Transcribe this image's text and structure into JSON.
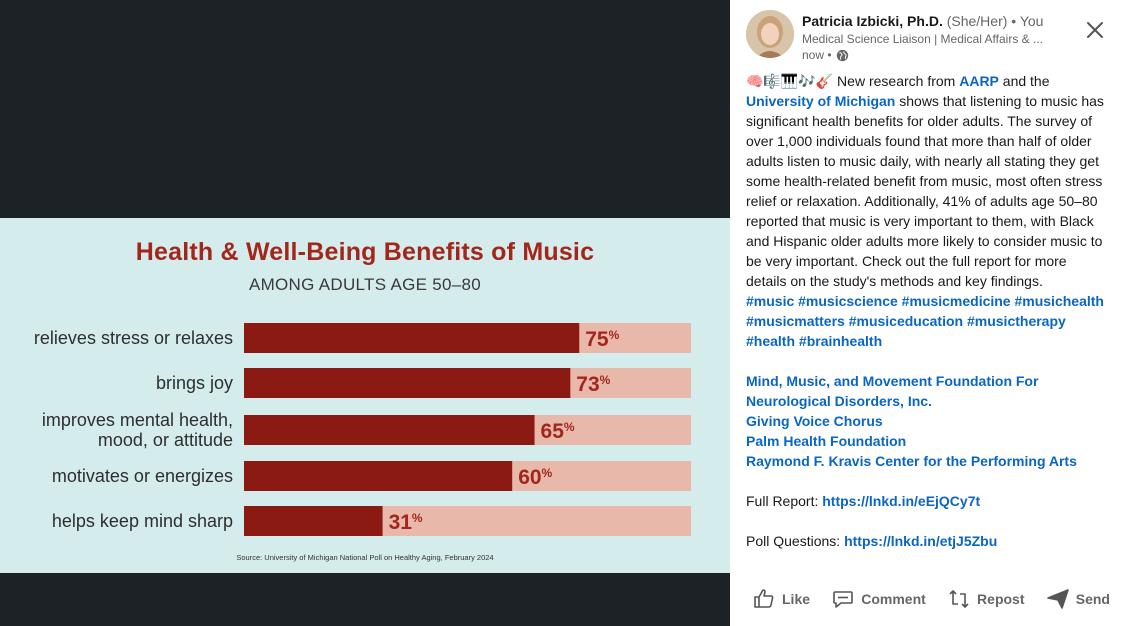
{
  "infographic": {
    "title": "Health & Well-Being Benefits of Music",
    "subtitle": "AMONG ADULTS AGE 50–80",
    "source": "Source: University of Michigan National Poll on Healthy Aging, February 2024"
  },
  "chart_data": {
    "type": "bar",
    "orientation": "horizontal",
    "title": "Health & Well-Being Benefits of Music",
    "subtitle": "AMONG ADULTS AGE 50–80",
    "categories": [
      [
        "relieves stress or relaxes"
      ],
      [
        "brings joy"
      ],
      [
        "improves mental health,",
        "mood, or attitude"
      ],
      [
        "motivates or energizes"
      ],
      [
        "helps keep mind sharp"
      ]
    ],
    "values": [
      75,
      73,
      65,
      60,
      31
    ],
    "unit": "%",
    "xlim": [
      0,
      100
    ],
    "grid": false,
    "legend": "none",
    "bar_color": "#8b1a12",
    "track_color": "#e8b8aa",
    "value_color": "#a3261c"
  },
  "post": {
    "author_name": "Patricia Izbicki, Ph.D.",
    "pronouns": "(She/Her)",
    "connection": "• You",
    "headline": "Medical Science Liaison | Medical Affairs & ...",
    "time": "now •",
    "emojis": "🧠🎼🎹🎶🎸",
    "p1_a": " New research from ",
    "p1_link1": "AARP",
    "p1_b": " and the ",
    "p1_link2": "University of Michigan",
    "p1_c": " shows that listening to music has significant health benefits for older adults. The survey of over 1,000 individuals found that more than half of older adults listen to music daily, with nearly all stating they get some health-related benefit from music, most often stress relief or relaxation. Additionally, 41% of adults age 50–80 reported that music is very important to them, with Black and Hispanic older adults more likely to consider music to be very important. Check out the full report for more details on the study's methods and key findings.",
    "hashtags": [
      "#music",
      "#musicscience",
      "#musicmedicine",
      "#musichealth",
      "#musicmatters",
      "#musiceducation",
      "#musictherapy",
      "#health",
      "#brainhealth"
    ],
    "mentions": [
      "Mind, Music, and Movement Foundation For Neurological Disorders, Inc.",
      "Giving Voice Chorus",
      "Palm Health Foundation",
      "Raymond F. Kravis Center for the Performing Arts"
    ],
    "full_report_label": "Full Report: ",
    "full_report_url": "https://lnkd.in/eEjQCy7t",
    "poll_label": "Poll Questions: ",
    "poll_url": "https://lnkd.in/etjJ5Zbu"
  },
  "actions": {
    "like": "Like",
    "comment": "Comment",
    "repost": "Repost",
    "send": "Send"
  },
  "icons": {
    "close": "close-icon",
    "globe": "globe-icon",
    "like": "thumbs-up-icon",
    "comment": "comment-icon",
    "repost": "repost-icon",
    "send": "send-icon"
  }
}
